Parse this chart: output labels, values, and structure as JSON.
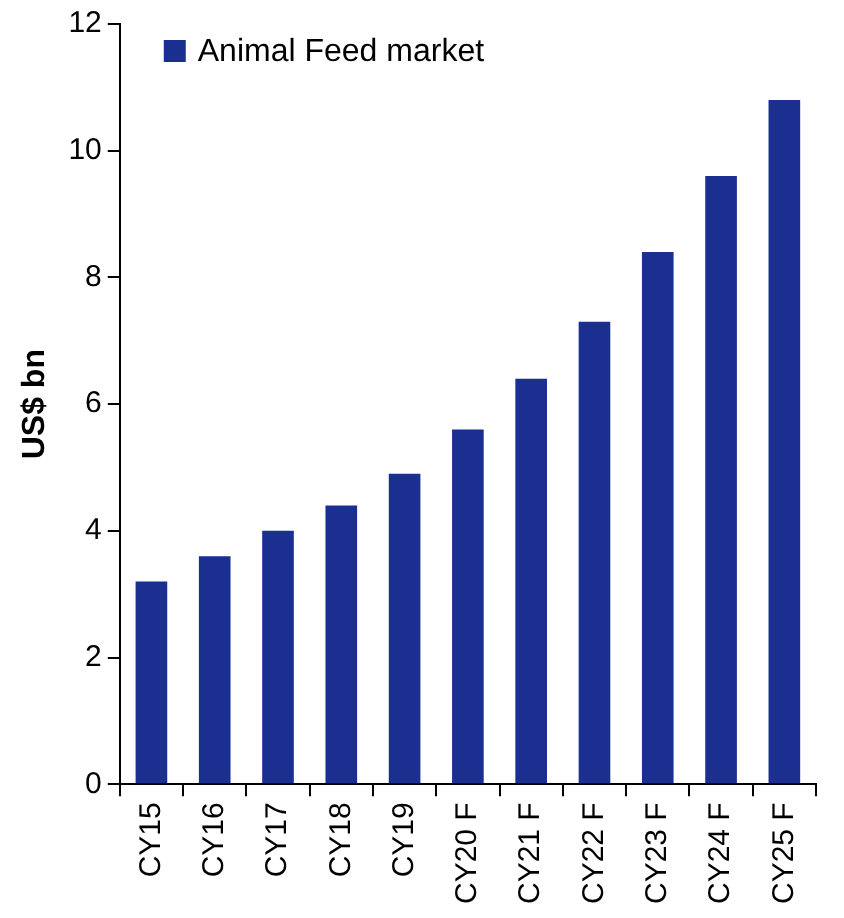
{
  "chart_data": {
    "type": "bar",
    "ylabel": "US$ bn",
    "categories": [
      "CY15",
      "CY16",
      "CY17",
      "CY18",
      "CY19",
      "CY20 F",
      "CY21 F",
      "CY22 F",
      "CY23 F",
      "CY24 F",
      "CY25 F"
    ],
    "series": [
      {
        "name": "Animal Feed market",
        "color": "#1a2f8f",
        "values": [
          3.2,
          3.6,
          4.0,
          4.4,
          4.9,
          5.6,
          6.4,
          7.3,
          8.4,
          9.6,
          10.8
        ]
      }
    ],
    "ylim": [
      0,
      12
    ],
    "yticks": [
      0,
      2,
      4,
      6,
      8,
      10,
      12
    ],
    "grid": false,
    "legend": "top left"
  }
}
